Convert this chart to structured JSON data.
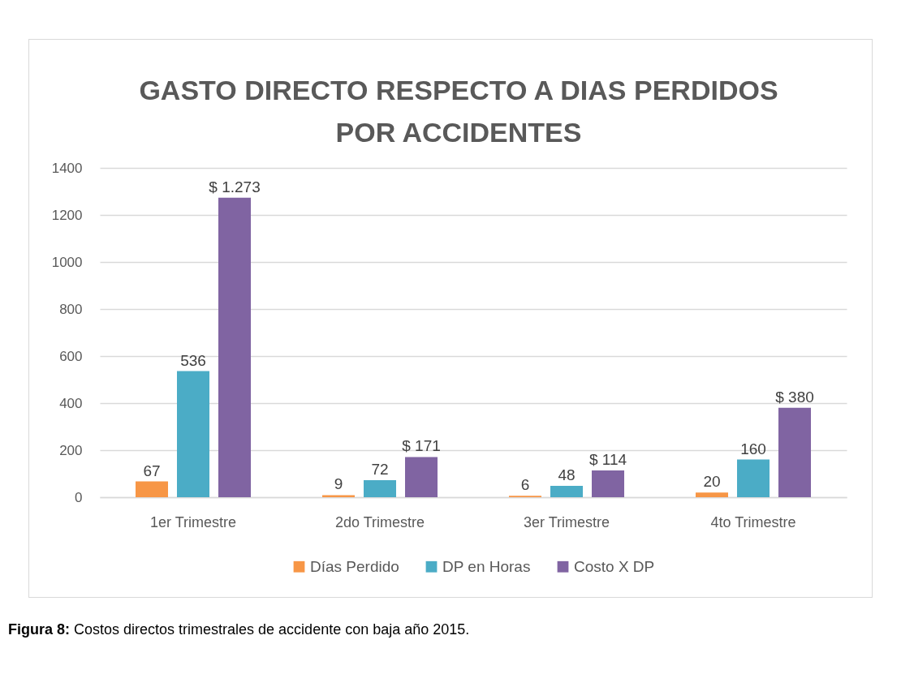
{
  "chart_data": {
    "type": "bar",
    "title": "GASTO DIRECTO RESPECTO A DIAS PERDIDOS POR ACCIDENTES",
    "categories": [
      "1er Trimestre",
      "2do Trimestre",
      "3er Trimestre",
      "4to Trimestre"
    ],
    "series": [
      {
        "name": "Días Perdido",
        "color": "#f79646",
        "values": [
          67,
          9,
          6,
          20
        ],
        "value_labels": [
          "67",
          "9",
          "6",
          "20"
        ]
      },
      {
        "name": "DP en Horas",
        "color": "#4bacc6",
        "values": [
          536,
          72,
          48,
          160
        ],
        "value_labels": [
          "536",
          "72",
          "48",
          "160"
        ]
      },
      {
        "name": "Costo X DP",
        "color": "#8064a2",
        "values": [
          1273,
          171,
          114,
          380
        ],
        "value_labels": [
          "$ 1.273",
          "$ 171",
          "$ 114",
          "$ 380"
        ]
      }
    ],
    "ylim": [
      0,
      1400
    ],
    "yticks": [
      0,
      200,
      400,
      600,
      800,
      1000,
      1200,
      1400
    ],
    "grid": "y",
    "legend": "bottom",
    "annotations": [
      "Figura 8: Costos directos trimestrales de accidente con baja año 2015."
    ]
  }
}
